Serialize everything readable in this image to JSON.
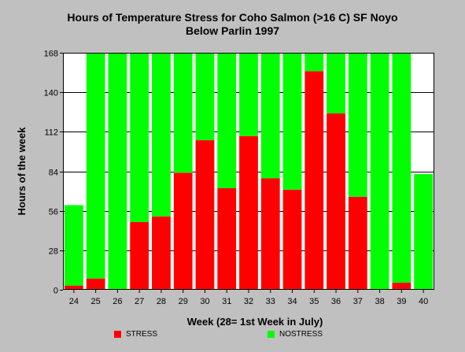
{
  "chart_data": {
    "type": "bar",
    "stacked": true,
    "title": [
      "Hours of Temperature Stress for Coho Salmon (>16 C) SF Noyo",
      "Below Parlin 1997"
    ],
    "xlabel": "Week (28= 1st Week in July)",
    "ylabel": "Hours of the week",
    "ylim": [
      0,
      168
    ],
    "yticks": [
      0,
      28,
      56,
      84,
      112,
      140,
      168
    ],
    "grid": true,
    "legend_position": "bottom",
    "categories": [
      "24",
      "25",
      "26",
      "27",
      "28",
      "29",
      "30",
      "31",
      "32",
      "33",
      "34",
      "35",
      "36",
      "37",
      "38",
      "39",
      "40"
    ],
    "series": [
      {
        "name": "STRESS",
        "color": "#ff0000",
        "values": [
          3,
          8,
          0,
          48,
          52,
          83,
          106,
          72,
          109,
          79,
          71,
          155,
          125,
          66,
          0,
          5,
          0
        ]
      },
      {
        "name": "NOSTRESS",
        "color": "#00ff00",
        "values": [
          57,
          160,
          168,
          120,
          116,
          85,
          62,
          96,
          59,
          89,
          97,
          13,
          43,
          102,
          168,
          163,
          82
        ]
      }
    ]
  }
}
